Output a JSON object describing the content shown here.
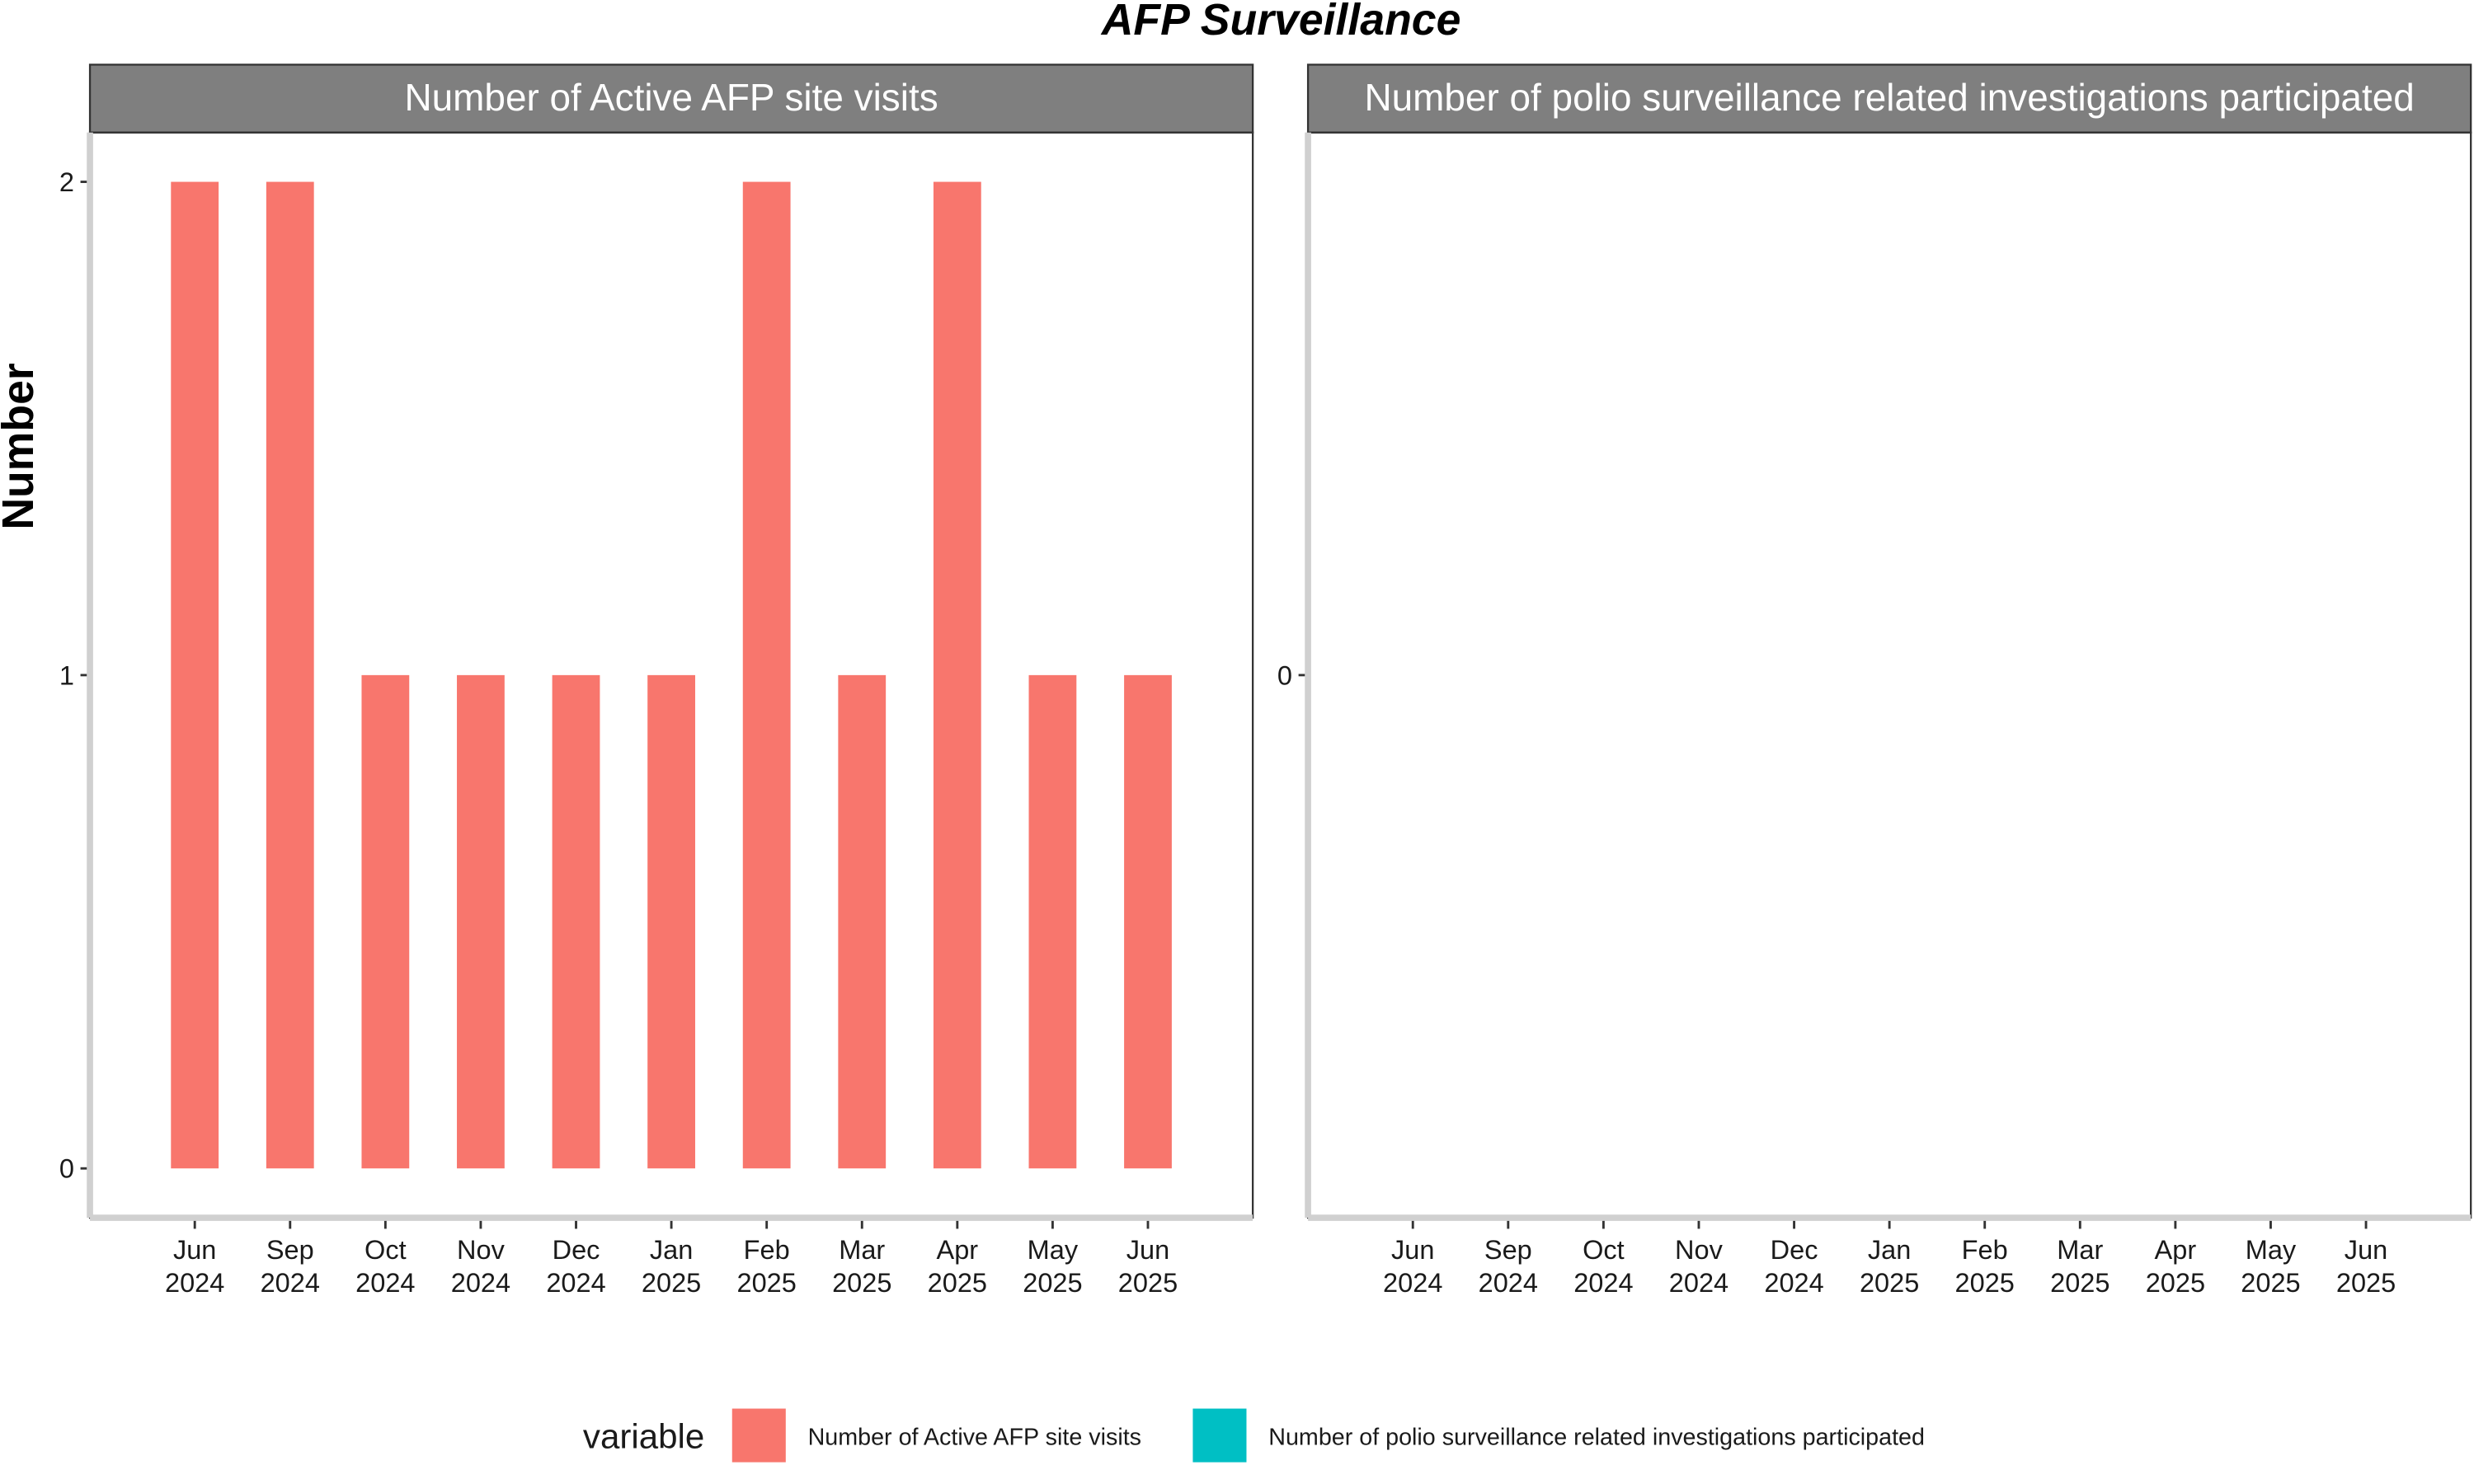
{
  "title": "AFP Surveillance",
  "y_label": "Number",
  "legend_title": "variable",
  "chart_data": [
    {
      "type": "bar",
      "facet_title": "Number of Active AFP site visits",
      "categories": [
        "Jun 2024",
        "Sep 2024",
        "Oct 2024",
        "Nov 2024",
        "Dec 2024",
        "Jan 2025",
        "Feb 2025",
        "Mar 2025",
        "Apr 2025",
        "May 2025",
        "Jun 2025"
      ],
      "series": [
        {
          "name": "Number of Active AFP site visits",
          "color": "#f8766d",
          "values": [
            2,
            2,
            1,
            1,
            1,
            1,
            2,
            1,
            2,
            1,
            1
          ]
        }
      ],
      "ylim": [
        -0.1,
        2.1
      ],
      "yticks": [
        0,
        1,
        2
      ]
    },
    {
      "type": "bar",
      "facet_title": "Number of polio surveillance related investigations participated",
      "categories": [
        "Jun 2024",
        "Sep 2024",
        "Oct 2024",
        "Nov 2024",
        "Dec 2024",
        "Jan 2025",
        "Feb 2025",
        "Mar 2025",
        "Apr 2025",
        "May 2025",
        "Jun 2025"
      ],
      "series": [
        {
          "name": "Number of polio surveillance related investigations participated",
          "color": "#00bfc4",
          "values": [
            0,
            0,
            0,
            0,
            0,
            0,
            0,
            0,
            0,
            0,
            0
          ]
        }
      ],
      "ylim": [
        -0.05,
        0.05
      ],
      "yticks": [
        0
      ]
    }
  ]
}
